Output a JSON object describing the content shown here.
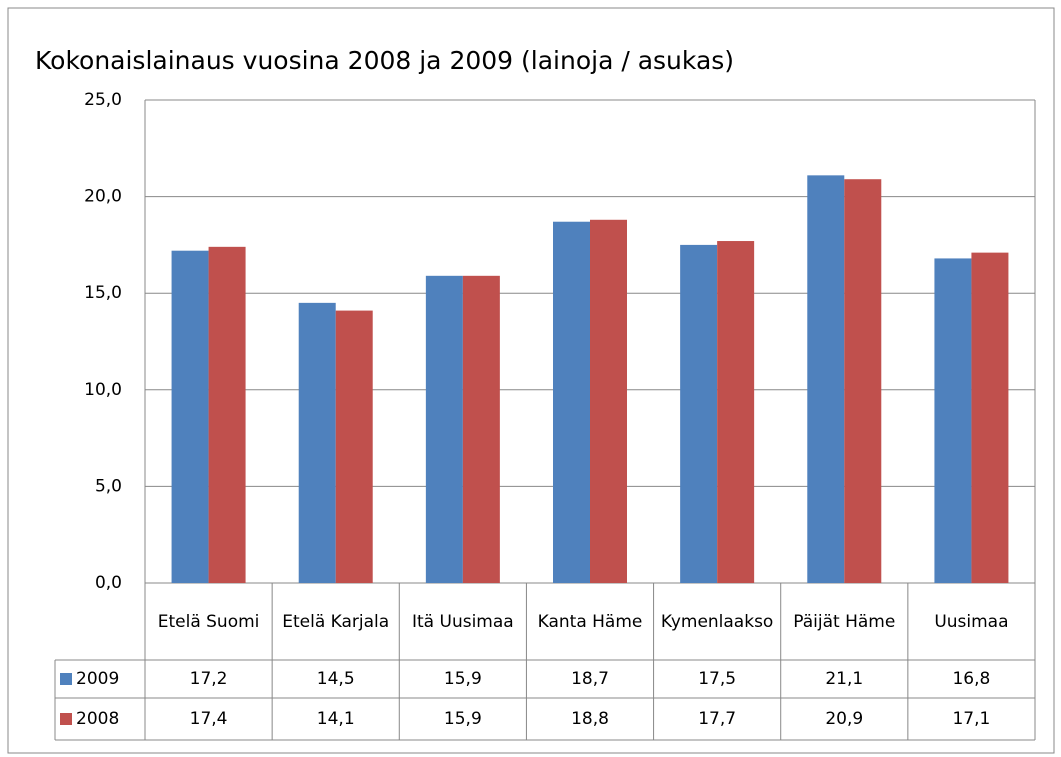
{
  "chart_data": {
    "type": "bar",
    "title": "Kokonaislainaus vuosina 2008 ja 2009 (lainoja / asukas)",
    "categories": [
      "Etelä Suomi",
      "Etelä Karjala",
      "Itä Uusimaa",
      "Kanta Häme",
      "Kymenlaakso",
      "Päijät Häme",
      "Uusimaa"
    ],
    "series": [
      {
        "name": "2009",
        "color": "#4f81bd",
        "values": [
          17.2,
          14.5,
          15.9,
          18.7,
          17.5,
          21.1,
          16.8
        ],
        "value_labels": [
          "17,2",
          "14,5",
          "15,9",
          "18,7",
          "17,5",
          "21,1",
          "16,8"
        ]
      },
      {
        "name": "2008",
        "color": "#c0504d",
        "values": [
          17.4,
          14.1,
          15.9,
          18.8,
          17.7,
          20.9,
          17.1
        ],
        "value_labels": [
          "17,4",
          "14,1",
          "15,9",
          "18,8",
          "17,7",
          "20,9",
          "17,1"
        ]
      }
    ],
    "ylim": [
      0,
      25
    ],
    "yticks": [
      {
        "value": 0,
        "label": "0,0"
      },
      {
        "value": 5,
        "label": "5,0"
      },
      {
        "value": 10,
        "label": "10,0"
      },
      {
        "value": 15,
        "label": "15,0"
      },
      {
        "value": 20,
        "label": "20,0"
      },
      {
        "value": 25,
        "label": "25,0"
      }
    ],
    "grid": true
  }
}
